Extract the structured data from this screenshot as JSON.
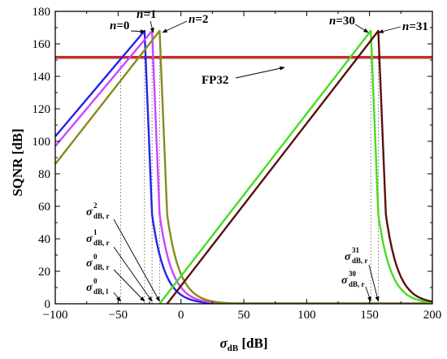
{
  "chart_data": {
    "type": "line",
    "xlabel": {
      "main": "σ",
      "sub": "dB",
      "unit": "[dB]"
    },
    "ylabel": "SQNR [dB]",
    "xlim": [
      -100,
      200
    ],
    "ylim": [
      0,
      180
    ],
    "xticks": [
      -100,
      -50,
      0,
      50,
      100,
      150,
      200
    ],
    "yticks": [
      0,
      20,
      40,
      60,
      80,
      100,
      120,
      140,
      160,
      180
    ],
    "xtick_labels": [
      "−100",
      "−50",
      "0",
      "50",
      "100",
      "150",
      "200"
    ],
    "ytick_labels": [
      "0",
      "20",
      "40",
      "60",
      "80",
      "100",
      "120",
      "140",
      "160",
      "180"
    ],
    "grid": false,
    "reference_line": {
      "label": "FP32",
      "y": 151.9,
      "color": "#cc2222"
    },
    "series": [
      {
        "name": "n=0",
        "color": "#2222ee",
        "peak_x": -29,
        "peak_y": 168,
        "x_start": -100,
        "y_start": 103
      },
      {
        "name": "n=1",
        "color": "#cc44ff",
        "peak_x": -23,
        "peak_y": 168,
        "x_start": -100,
        "y_start": 97
      },
      {
        "name": "n=2",
        "color": "#8a8a1e",
        "peak_x": -17,
        "peak_y": 168,
        "x_start": -100,
        "y_start": 86
      },
      {
        "name": "n=30",
        "color": "#44dd22",
        "peak_x": 151,
        "peak_y": 168,
        "x_start": -17,
        "y_start": 0
      },
      {
        "name": "n=31",
        "color": "#5a1010",
        "peak_x": 157,
        "peak_y": 168,
        "x_start": -11,
        "y_start": 0
      }
    ],
    "vertical_markers": [
      -48,
      -29,
      -23,
      -17,
      151,
      157
    ],
    "annotations": [
      {
        "id": "n0",
        "text": "n=0",
        "n_part": "n",
        "rest": "=0",
        "target": [
          -28,
          168
        ]
      },
      {
        "id": "n1",
        "text": "n=1",
        "n_part": "n",
        "rest": "=1",
        "target": [
          -22,
          167
        ]
      },
      {
        "id": "n2",
        "text": "n=2",
        "n_part": "n",
        "rest": "=2",
        "target": [
          -16,
          167
        ]
      },
      {
        "id": "n30",
        "text": "n=30",
        "n_part": "n",
        "rest": "=30",
        "target": [
          149,
          167
        ]
      },
      {
        "id": "n31",
        "text": "n=31",
        "n_part": "n",
        "rest": "=31",
        "target": [
          156,
          167
        ]
      },
      {
        "id": "fp32",
        "text": "FP32",
        "target": [
          -28,
          151
        ]
      }
    ],
    "sigma_labels": [
      {
        "id": "s2r",
        "sup": "2",
        "sub": "dB, r",
        "target": [
          -17,
          1
        ]
      },
      {
        "id": "s1r",
        "sup": "1",
        "sub": "dB, r",
        "target": [
          -23,
          1
        ]
      },
      {
        "id": "s0r",
        "sup": "0",
        "sub": "dB, r",
        "target": [
          -29,
          1
        ]
      },
      {
        "id": "s0l",
        "sup": "0",
        "sub": "dB, l",
        "target": [
          -48,
          1
        ]
      },
      {
        "id": "s31r",
        "sup": "31",
        "sub": "dB, r",
        "target": [
          157,
          1
        ]
      },
      {
        "id": "s30r",
        "sup": "30",
        "sub": "dB, r",
        "target": [
          151,
          1
        ]
      }
    ]
  }
}
